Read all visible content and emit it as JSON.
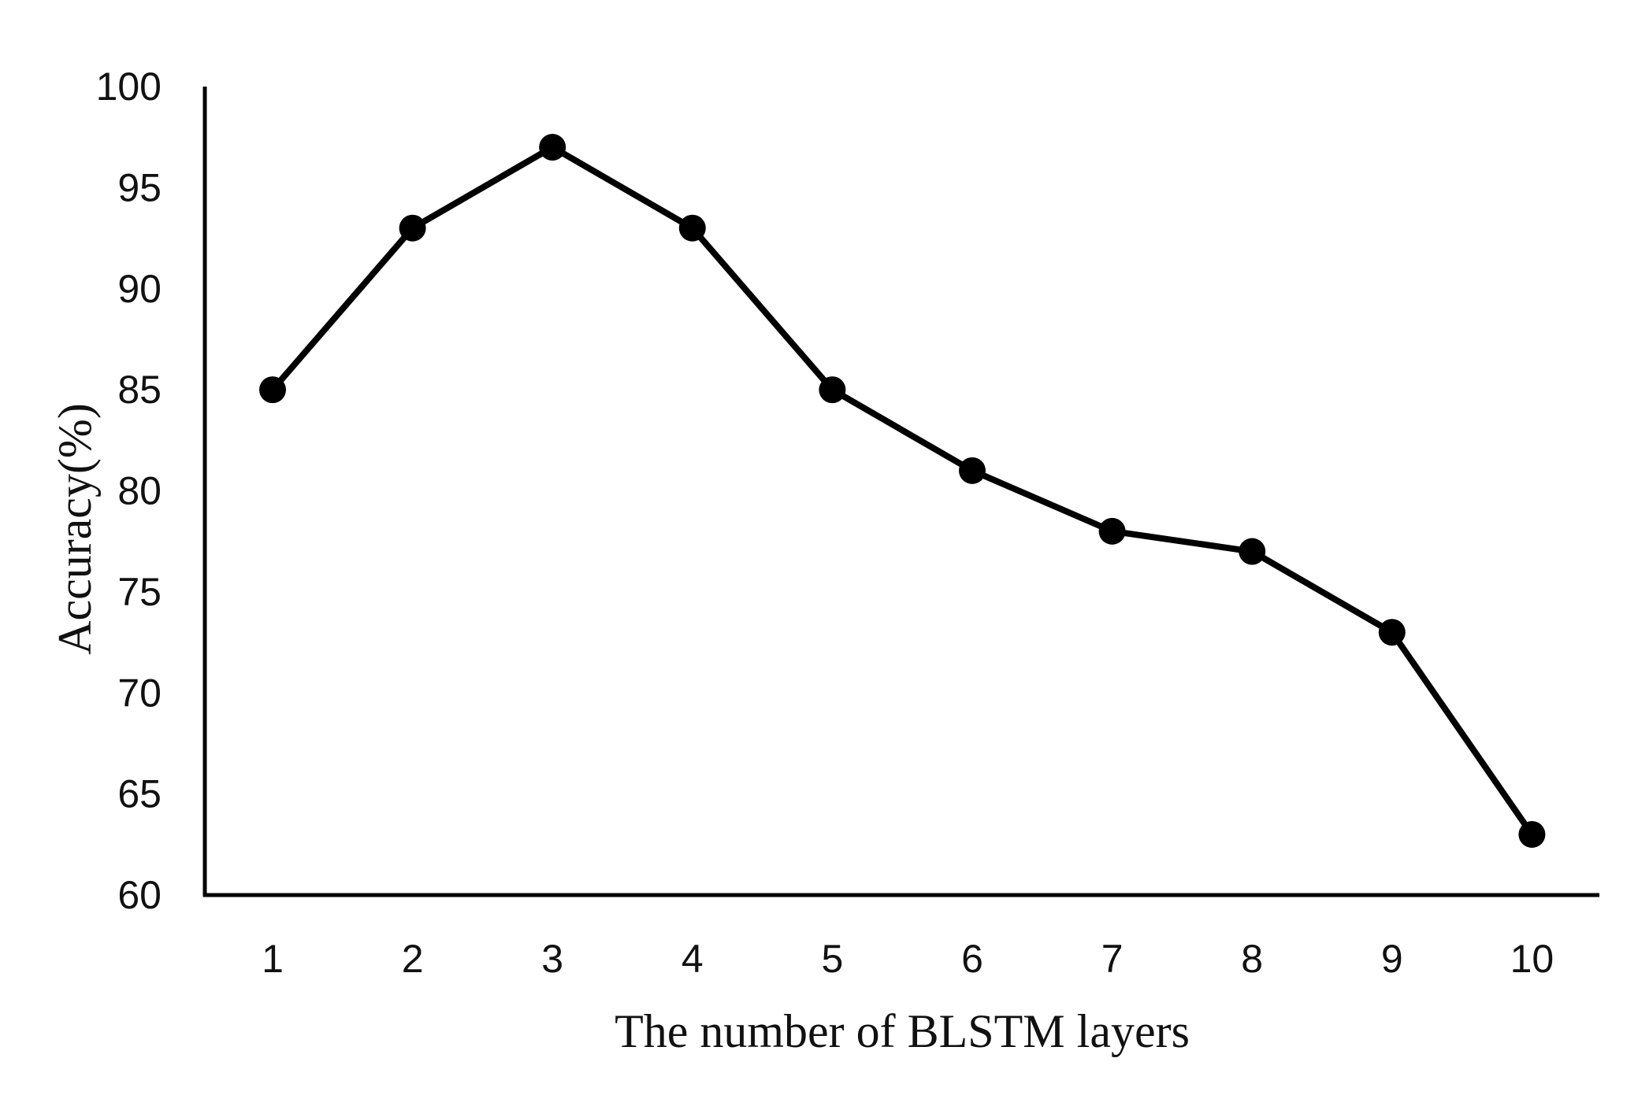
{
  "chart_data": {
    "type": "line",
    "title": "",
    "xlabel": "The number of BLSTM layers",
    "ylabel": "Accuracy(%)",
    "x": [
      1,
      2,
      3,
      4,
      5,
      6,
      7,
      8,
      9,
      10
    ],
    "series": [
      {
        "values": [
          85,
          93,
          97,
          93,
          85,
          81,
          78,
          77,
          73,
          63
        ],
        "color": "#000000",
        "marker": "circle"
      }
    ],
    "ylim": [
      60,
      100
    ],
    "yticks": [
      60,
      65,
      70,
      75,
      80,
      85,
      90,
      95,
      100
    ],
    "xticks": [
      1,
      2,
      3,
      4,
      5,
      6,
      7,
      8,
      9,
      10
    ],
    "grid": false,
    "legend": "none"
  }
}
